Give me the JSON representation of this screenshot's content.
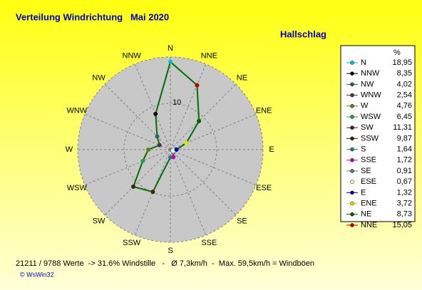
{
  "chart_data": {
    "type": "radar",
    "title": "Verteilung Windrichtung   Mai 2020",
    "subtitle": "Hallschlag",
    "directions": [
      "N",
      "NNE",
      "NE",
      "ENE",
      "E",
      "ESE",
      "SE",
      "SSE",
      "S",
      "SSW",
      "SW",
      "WSW",
      "W",
      "WNW",
      "NW",
      "NNW"
    ],
    "legend_header": "%",
    "categories": [
      "N",
      "NNW",
      "NW",
      "WNW",
      "W",
      "WSW",
      "SW",
      "SSW",
      "S",
      "SSE",
      "SE",
      "ESE",
      "E",
      "ENE",
      "NE",
      "NNE"
    ],
    "values": [
      18.95,
      8.35,
      4.02,
      2.54,
      4.76,
      6.45,
      11.31,
      9.87,
      1.64,
      1.72,
      0.91,
      0.67,
      1.32,
      3.72,
      8.73,
      15.05
    ],
    "value_labels": [
      "18,95",
      "8,35",
      "4,02",
      "2,54",
      "4,76",
      "6,45",
      "11,31",
      "9,87",
      "1,64",
      "1,72",
      "0,91",
      "0,67",
      "1,32",
      "3,72",
      "8,73",
      "15,05"
    ],
    "colors": [
      "#00c0c0",
      "#000000",
      "#306060",
      "#503050",
      "#608020",
      "#20a040",
      "#402020",
      "#402000",
      "#208080",
      "#c000c0",
      "#707070",
      "#e0ffe0",
      "#0000c0",
      "#e0e000",
      "#006000",
      "#c00000"
    ],
    "line_color": "#007000",
    "rlim": [
      0,
      20
    ],
    "rticks": [
      10
    ],
    "footer": "21211 / 9788 Werte  -> 31.6% Windstille   -   Ø 7,3km/h  -  Max. 59,5km/h = Windböen",
    "copyright": "© WsWin32"
  }
}
